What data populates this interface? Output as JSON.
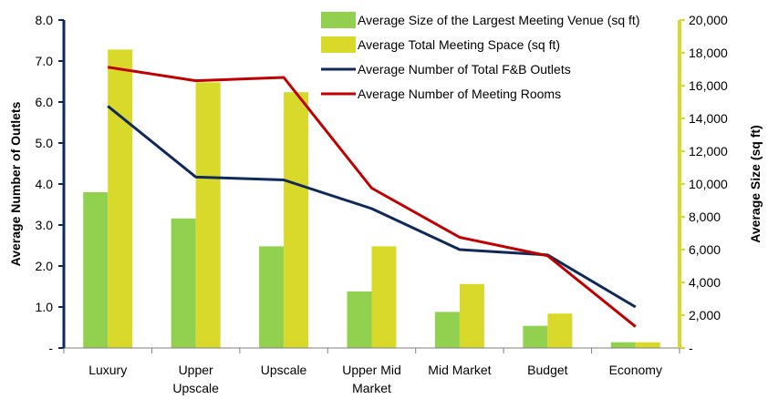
{
  "chart_data": {
    "type": "bar",
    "categories": [
      [
        "Luxury"
      ],
      [
        "Upper",
        "Upscale"
      ],
      [
        "Upscale"
      ],
      [
        "Upper Mid",
        "Market"
      ],
      [
        "Mid Market"
      ],
      [
        "Budget"
      ],
      [
        "Economy"
      ]
    ],
    "series": [
      {
        "name": "Average Size of the Largest Meeting Venue (sq ft)",
        "kind": "bar",
        "axis": "right",
        "color": "#92d050",
        "values": [
          9500,
          7900,
          6200,
          3450,
          2200,
          1350,
          350
        ]
      },
      {
        "name": "Average Total Meeting Space (sq ft)",
        "kind": "bar",
        "axis": "right",
        "color": "#d9d92b",
        "values": [
          18200,
          16200,
          15600,
          6200,
          3900,
          2100,
          350
        ]
      },
      {
        "name": "Average Number of Total F&B Outlets",
        "kind": "line",
        "axis": "left",
        "color": "#0f2a5a",
        "values": [
          5.9,
          4.17,
          4.1,
          3.4,
          2.4,
          2.27,
          1.0
        ]
      },
      {
        "name": "Average Number of Meeting Rooms",
        "kind": "line",
        "axis": "left",
        "color": "#c00000",
        "values": [
          6.85,
          6.52,
          6.6,
          3.9,
          2.7,
          2.25,
          0.52
        ]
      }
    ],
    "left_axis": {
      "label": "Average Number of  Outlets",
      "ylim": [
        0,
        8
      ],
      "ticks": [
        0,
        1,
        2,
        3,
        4,
        5,
        6,
        7,
        8
      ],
      "tick_labels": [
        "-",
        "1.0",
        "2.0",
        "3.0",
        "4.0",
        "5.0",
        "6.0",
        "7.0",
        "8.0"
      ],
      "color": "#0f2a5a"
    },
    "right_axis": {
      "label": "Average Size (sq ft)",
      "ylim": [
        0,
        20000
      ],
      "ticks": [
        0,
        2000,
        4000,
        6000,
        8000,
        10000,
        12000,
        14000,
        16000,
        18000,
        20000
      ],
      "tick_labels": [
        "-",
        "2,000",
        "4,000",
        "6,000",
        "8,000",
        "10,000",
        "12,000",
        "14,000",
        "16,000",
        "18,000",
        "20,000"
      ],
      "color": "#d9d92b"
    },
    "legend_position": "top-right",
    "grid": false
  }
}
